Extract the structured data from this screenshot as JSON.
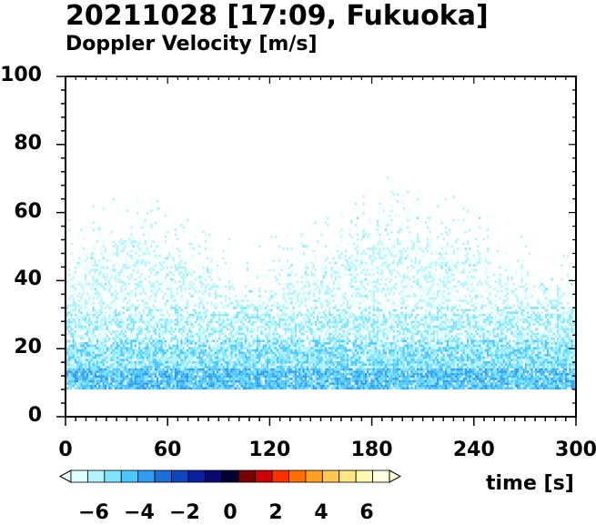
{
  "title": "20211028 [17:09, Fukuoka]",
  "subtitle": "Doppler Velocity [m/s]",
  "chart_data": {
    "type": "heatmap",
    "title": "20211028 [17:09, Fukuoka]",
    "subtitle": "Doppler Velocity [m/s]",
    "xlabel": "time [s]",
    "ylabel": "",
    "xlim": [
      0,
      300
    ],
    "ylim": [
      0,
      100
    ],
    "x_ticks": [
      "0",
      "60",
      "120",
      "180",
      "240",
      "300"
    ],
    "y_ticks": [
      "0",
      "20",
      "40",
      "60",
      "80",
      "100"
    ],
    "colorbar": {
      "range": [
        -7,
        7
      ],
      "ticks": [
        "−6",
        "−4",
        "−2",
        "0",
        "2",
        "4",
        "6"
      ],
      "colors": [
        "#e0ffff",
        "#b0f4ff",
        "#7fe4ff",
        "#4cc6ff",
        "#2e9cf0",
        "#1a6fd8",
        "#0e45c0",
        "#0a20a0",
        "#0a0a70",
        "#000030",
        "#7a0000",
        "#d00000",
        "#ff3000",
        "#ff7000",
        "#ffa020",
        "#ffc850",
        "#ffe880",
        "#fff8b0",
        "#ffffe0"
      ]
    },
    "data_min_height": 8,
    "data_description_bands": [
      {
        "height_range": [
          8,
          20
        ],
        "velocity": -4.5
      },
      {
        "height_range": [
          20,
          30
        ],
        "velocity": -5.5
      },
      {
        "height_range": [
          30,
          50
        ],
        "velocity": -6.5
      },
      {
        "height_range": [
          50,
          63
        ],
        "velocity": -6.0
      }
    ]
  }
}
